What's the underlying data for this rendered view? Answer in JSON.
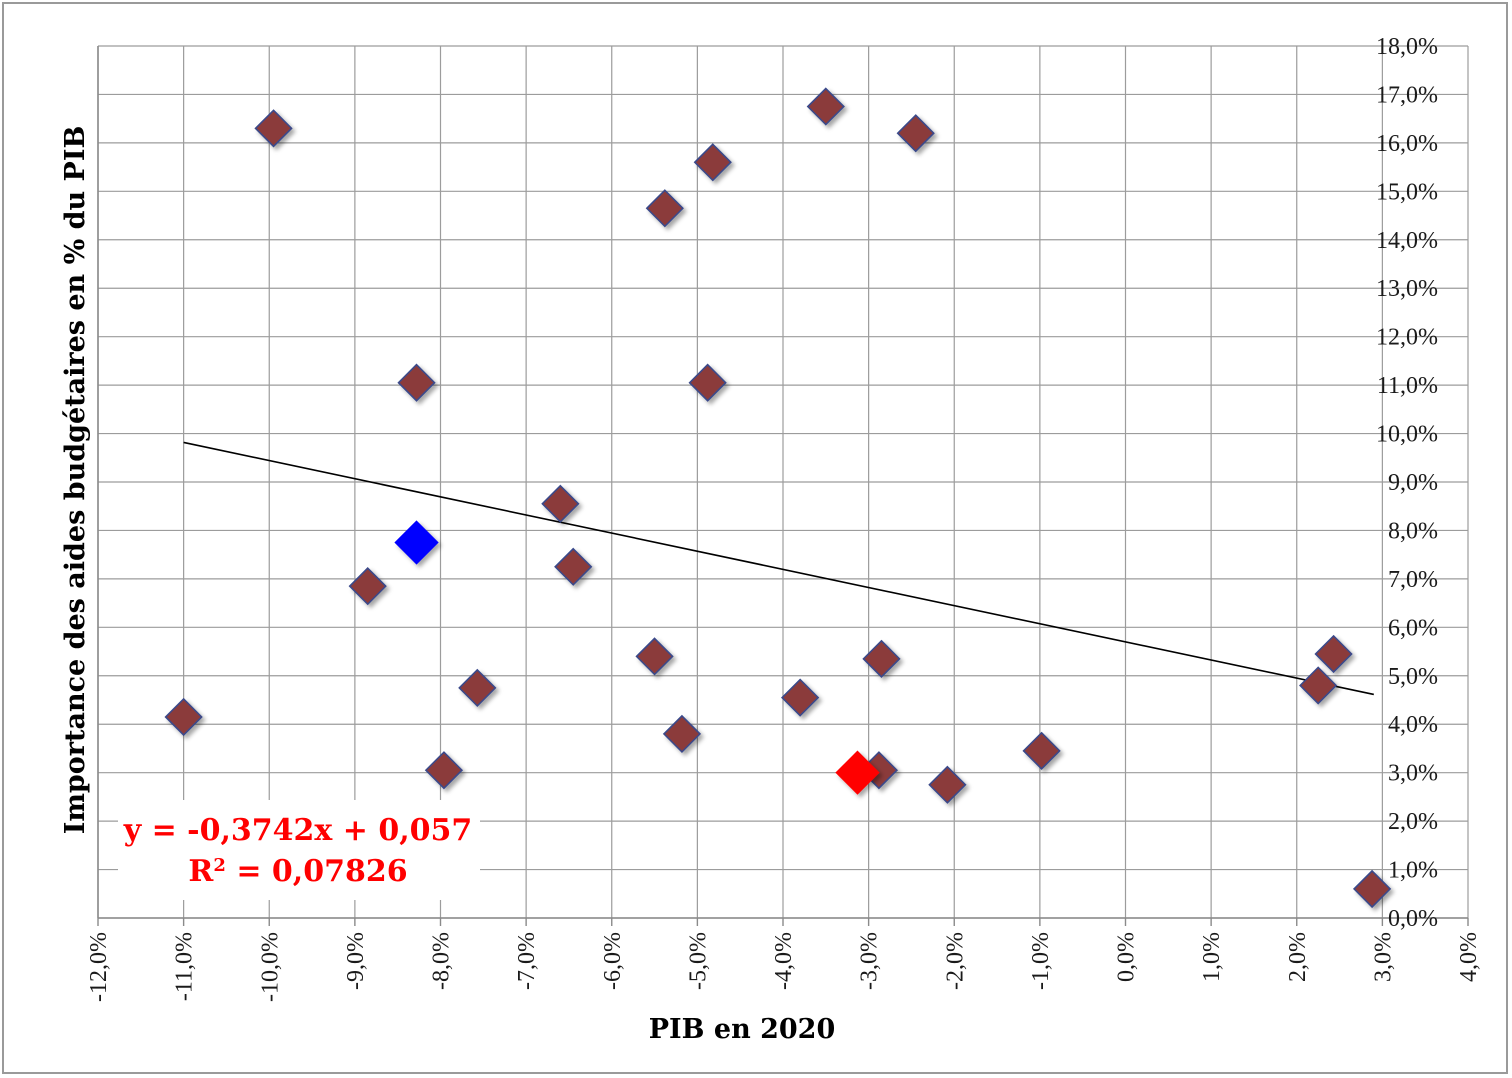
{
  "chart_data": {
    "type": "scatter",
    "xlabel": "PIB en 2020",
    "ylabel": "Importance des aides budgétaires en % du PIB",
    "xlim": [
      -0.12,
      0.04
    ],
    "ylim": [
      0.0,
      0.18
    ],
    "x_ticks": [
      "-12,0%",
      "-11,0%",
      "-10,0%",
      "-9,0%",
      "-8,0%",
      "-7,0%",
      "-6,0%",
      "-5,0%",
      "-4,0%",
      "-3,0%",
      "-2,0%",
      "-1,0%",
      "0,0%",
      "1,0%",
      "2,0%",
      "3,0%",
      "4,0%"
    ],
    "y_ticks": [
      "0,0%",
      "1,0%",
      "2,0%",
      "3,0%",
      "4,0%",
      "5,0%",
      "6,0%",
      "7,0%",
      "8,0%",
      "9,0%",
      "10,0%",
      "11,0%",
      "12,0%",
      "13,0%",
      "14,0%",
      "15,0%",
      "16,0%",
      "17,0%",
      "18,0%"
    ],
    "grid": true,
    "y_axis_position": "right",
    "points": [
      {
        "x": -0.11,
        "y": 0.0415,
        "color": "#8b3a3a"
      },
      {
        "x": -0.0995,
        "y": 0.163,
        "color": "#8b3a3a"
      },
      {
        "x": -0.0885,
        "y": 0.0685,
        "color": "#8b3a3a"
      },
      {
        "x": -0.0828,
        "y": 0.1105,
        "color": "#8b3a3a"
      },
      {
        "x": -0.0796,
        "y": 0.0305,
        "color": "#8b3a3a"
      },
      {
        "x": -0.0757,
        "y": 0.0475,
        "color": "#8b3a3a"
      },
      {
        "x": -0.066,
        "y": 0.0855,
        "color": "#8b3a3a"
      },
      {
        "x": -0.0645,
        "y": 0.0725,
        "color": "#8b3a3a"
      },
      {
        "x": -0.055,
        "y": 0.054,
        "color": "#8b3a3a"
      },
      {
        "x": -0.0538,
        "y": 0.1465,
        "color": "#8b3a3a"
      },
      {
        "x": -0.0518,
        "y": 0.038,
        "color": "#8b3a3a"
      },
      {
        "x": -0.0488,
        "y": 0.1105,
        "color": "#8b3a3a"
      },
      {
        "x": -0.0482,
        "y": 0.156,
        "color": "#8b3a3a"
      },
      {
        "x": -0.038,
        "y": 0.0455,
        "color": "#8b3a3a"
      },
      {
        "x": -0.035,
        "y": 0.1675,
        "color": "#8b3a3a"
      },
      {
        "x": -0.0285,
        "y": 0.0535,
        "color": "#8b3a3a"
      },
      {
        "x": -0.0288,
        "y": 0.0305,
        "color": "#8b3a3a"
      },
      {
        "x": -0.0245,
        "y": 0.162,
        "color": "#8b3a3a"
      },
      {
        "x": -0.0208,
        "y": 0.0275,
        "color": "#8b3a3a"
      },
      {
        "x": -0.0098,
        "y": 0.0345,
        "color": "#8b3a3a"
      },
      {
        "x": 0.0225,
        "y": 0.048,
        "color": "#8b3a3a"
      },
      {
        "x": 0.0243,
        "y": 0.0545,
        "color": "#8b3a3a"
      },
      {
        "x": 0.0288,
        "y": 0.006,
        "color": "#8b3a3a"
      },
      {
        "x": -0.0828,
        "y": 0.0775,
        "color": "#0000ff"
      },
      {
        "x": -0.0313,
        "y": 0.03,
        "color": "#ff0000"
      }
    ],
    "trendline": {
      "slope": -0.3742,
      "intercept": 0.057,
      "x_range": [
        -0.11,
        0.029
      ],
      "color": "#000000",
      "equation": "y = -0,3742x + 0,057",
      "r2_prefix": "R",
      "r2_sup": "2",
      "r2_value": " = 0,07826",
      "label_color": "#ff0000"
    }
  }
}
